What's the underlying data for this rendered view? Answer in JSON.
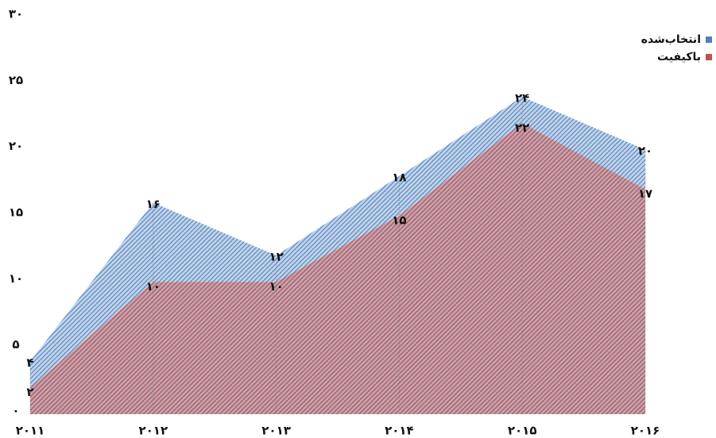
{
  "chart_data": {
    "type": "area",
    "categories": [
      "۲۰۱۱",
      "۲۰۱۲",
      "۲۰۱۳",
      "۲۰۱۴",
      "۲۰۱۵",
      "۲۰۱۶"
    ],
    "series": [
      {
        "name": "انتخاب‌شده",
        "color": "#4f81bd",
        "values": [
          4,
          16,
          12,
          18,
          24,
          20
        ],
        "value_labels": [
          "۴",
          "۱۶",
          "۱۲",
          "۱۸",
          "۲۴",
          "۲۰"
        ]
      },
      {
        "name": "باکیفیت",
        "color": "#c0504d",
        "values": [
          2,
          10,
          10,
          15,
          22,
          17
        ],
        "value_labels": [
          "۲",
          "۱۰",
          "۱۰",
          "۱۵",
          "۲۲",
          "۱۷"
        ]
      }
    ],
    "ylim": [
      0,
      30
    ],
    "yticks": [
      {
        "value": 0,
        "label": "۰"
      },
      {
        "value": 5,
        "label": "۵"
      },
      {
        "value": 10,
        "label": "۱۰"
      },
      {
        "value": 15,
        "label": "۱۵"
      },
      {
        "value": 20,
        "label": "۲۰"
      },
      {
        "value": 25,
        "label": "۲۵"
      },
      {
        "value": 30,
        "label": "۳۰"
      }
    ],
    "legend": "top-right",
    "grid": true
  }
}
